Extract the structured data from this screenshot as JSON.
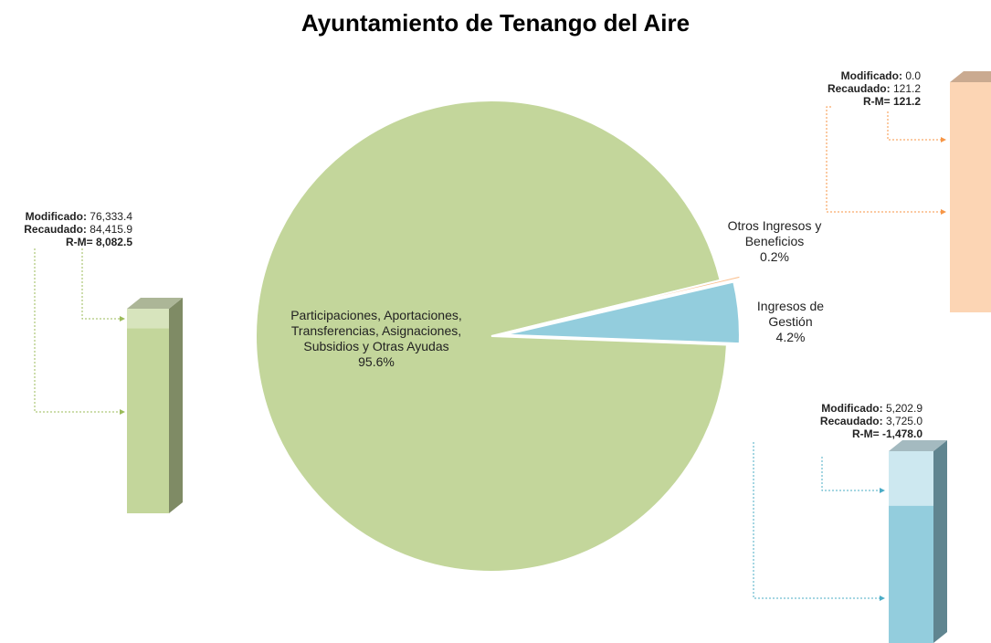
{
  "chart_data": {
    "type": "pie",
    "title": "Ayuntamiento de Tenango del Aire",
    "categories": [
      "Participaciones, Aportaciones, Transferencias, Asignaciones, Subsidios y Otras Ayudas",
      "Otros Ingresos y Beneficios",
      "Ingresos de Gestión"
    ],
    "values": [
      95.6,
      0.2,
      4.2
    ],
    "value_labels": [
      "95.6%",
      "0.2%",
      "4.2%"
    ],
    "colors": [
      "#c3d69b",
      "#fac090",
      "#93cddd"
    ],
    "light_colors": [
      "#d7e4bd",
      "#fcd5b4",
      "#cde8f0"
    ],
    "details": {
      "labels": [
        "Modificado:",
        "Recaudado:",
        "R-M="
      ],
      "modificado": [
        76333.4,
        0.0,
        5202.9
      ],
      "modificado_labels": [
        "76,333.4",
        "0.0",
        "5,202.9"
      ],
      "recaudado": [
        84415.9,
        121.2,
        3725.0
      ],
      "recaudado_labels": [
        "84,415.9",
        "121.2",
        "3,725.0"
      ],
      "diferencia": [
        8082.5,
        121.2,
        -1478.0
      ],
      "diferencia_labels": [
        "8,082.5",
        "121.2",
        "-1,478.0"
      ]
    }
  }
}
